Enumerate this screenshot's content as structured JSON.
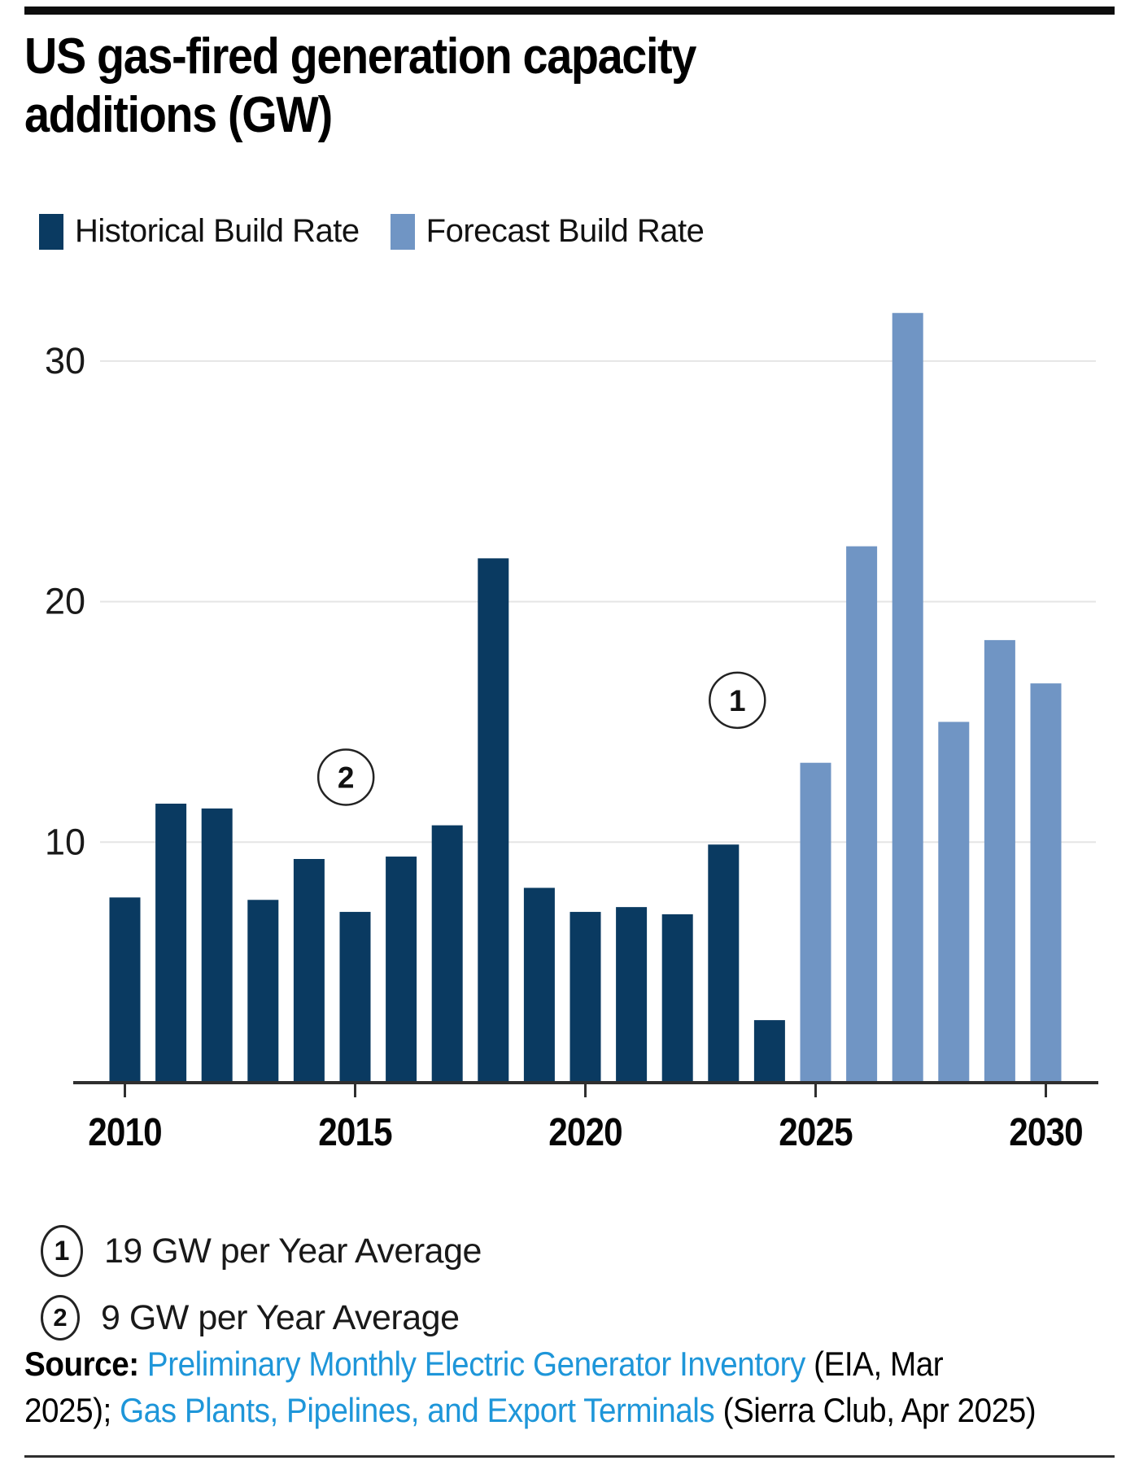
{
  "header": {
    "title": "US gas-fired generation capacity additions (GW)",
    "title_line1": "US gas-fired generation capacity",
    "title_line2": "additions (GW)"
  },
  "legend": [
    {
      "label": "Historical Build Rate",
      "color": "#0a3a61"
    },
    {
      "label": "Forecast Build Rate",
      "color": "#7095c4"
    }
  ],
  "chart_data": {
    "type": "bar",
    "title": "US gas-fired generation capacity additions (GW)",
    "unit": "GW",
    "ylim": [
      0,
      33
    ],
    "yticks": [
      10,
      20,
      30
    ],
    "xticks": [
      2010,
      2015,
      2020,
      2025,
      2030
    ],
    "grid": "horizontal",
    "legend_position": "top",
    "series": [
      {
        "name": "Historical Build Rate",
        "color": "#0a3a61",
        "years": [
          2010,
          2011,
          2012,
          2013,
          2014,
          2015,
          2016,
          2017,
          2018,
          2019,
          2020,
          2021,
          2022,
          2023,
          2024
        ],
        "values": [
          7.7,
          11.6,
          11.4,
          7.6,
          9.3,
          7.1,
          9.4,
          10.7,
          21.8,
          8.1,
          7.1,
          7.3,
          7.0,
          9.9,
          2.6
        ]
      },
      {
        "name": "Forecast Build Rate",
        "color": "#7095c4",
        "years": [
          2025,
          2026,
          2027,
          2028,
          2029,
          2030
        ],
        "values": [
          13.3,
          22.3,
          32.0,
          15.0,
          18.4,
          16.6
        ]
      }
    ],
    "annotations": [
      {
        "label": "1",
        "x_year": 2023.3,
        "y_gw": 15.9
      },
      {
        "label": "2",
        "x_year": 2014.8,
        "y_gw": 12.7
      }
    ]
  },
  "footnotes": [
    {
      "n": "1",
      "text": "19 GW per Year Average"
    },
    {
      "n": "2",
      "text": "9 GW per Year Average"
    }
  ],
  "source": {
    "label": "Source:",
    "line1_link": "Preliminary Monthly Electric Generator Inventory",
    "line1_plain": " (EIA, Mar",
    "line2_prefix": "2025); ",
    "line2_link": "Gas Plants, Pipelines, and Export Terminals",
    "line2_plain": " (Sierra Club, Apr 2025)"
  },
  "colors": {
    "historical": "#0a3a61",
    "forecast": "#7095c4",
    "link_blue": "#1e96d9",
    "gridline": "#e5e5e5",
    "axis": "#2f2f2f"
  }
}
